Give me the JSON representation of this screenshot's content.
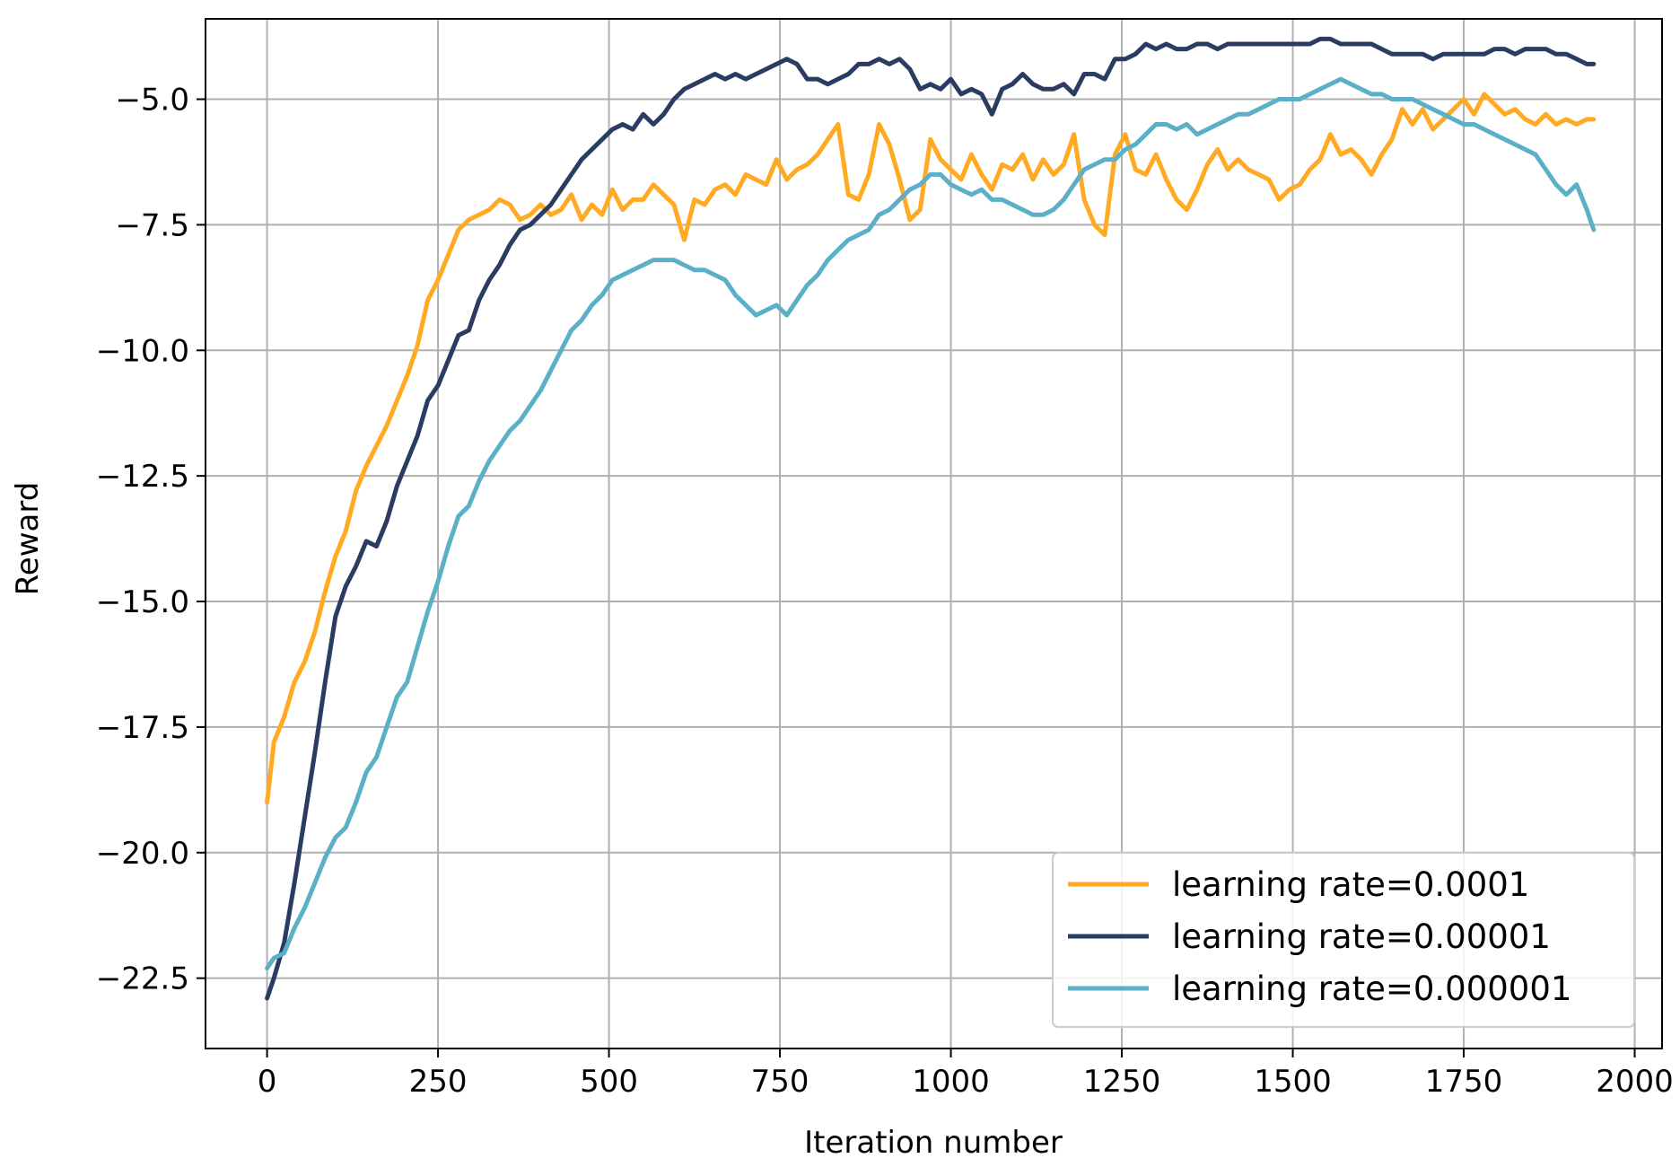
{
  "chart_data": {
    "type": "line",
    "xlabel": "Iteration number",
    "ylabel": "Reward",
    "xlim": [
      -90,
      2040
    ],
    "ylim": [
      -23.9,
      -3.4
    ],
    "xticks": [
      0,
      250,
      500,
      750,
      1000,
      1250,
      1500,
      1750,
      2000
    ],
    "yticks": [
      -22.5,
      -20.0,
      -17.5,
      -15.0,
      -12.5,
      -10.0,
      -7.5,
      -5.0
    ],
    "xtick_labels": [
      "0",
      "250",
      "500",
      "750",
      "1000",
      "1250",
      "1500",
      "1750",
      "2000"
    ],
    "ytick_labels": [
      "−22.5",
      "−20.0",
      "−17.5",
      "−15.0",
      "−12.5",
      "−10.0",
      "−7.5",
      "−5.0"
    ],
    "grid": true,
    "legend_position": "lower-right",
    "series": [
      {
        "name": "learning rate=0.0001",
        "color": "#FFAA22",
        "x": [
          0,
          10,
          25,
          40,
          55,
          70,
          85,
          100,
          115,
          130,
          145,
          160,
          175,
          190,
          205,
          220,
          235,
          250,
          265,
          280,
          295,
          310,
          325,
          340,
          355,
          370,
          385,
          400,
          415,
          430,
          445,
          460,
          475,
          490,
          505,
          520,
          535,
          550,
          565,
          580,
          595,
          610,
          625,
          640,
          655,
          670,
          685,
          700,
          715,
          730,
          745,
          760,
          775,
          790,
          805,
          820,
          835,
          850,
          865,
          880,
          895,
          910,
          925,
          940,
          955,
          970,
          985,
          1000,
          1015,
          1030,
          1045,
          1060,
          1075,
          1090,
          1105,
          1120,
          1135,
          1150,
          1165,
          1180,
          1195,
          1210,
          1225,
          1240,
          1255,
          1270,
          1285,
          1300,
          1315,
          1330,
          1345,
          1360,
          1375,
          1390,
          1405,
          1420,
          1435,
          1450,
          1465,
          1480,
          1495,
          1510,
          1525,
          1540,
          1555,
          1570,
          1585,
          1600,
          1615,
          1630,
          1645,
          1660,
          1675,
          1690,
          1705,
          1720,
          1735,
          1750,
          1765,
          1780,
          1795,
          1810,
          1825,
          1840,
          1855,
          1870,
          1885,
          1900,
          1915,
          1930,
          1940
        ],
        "y": [
          -19.0,
          -17.8,
          -17.3,
          -16.6,
          -16.2,
          -15.6,
          -14.8,
          -14.1,
          -13.6,
          -12.8,
          -12.3,
          -11.9,
          -11.5,
          -11.0,
          -10.5,
          -9.9,
          -9.0,
          -8.6,
          -8.1,
          -7.6,
          -7.4,
          -7.3,
          -7.2,
          -7.0,
          -7.1,
          -7.4,
          -7.3,
          -7.1,
          -7.3,
          -7.2,
          -6.9,
          -7.4,
          -7.1,
          -7.3,
          -6.8,
          -7.2,
          -7.0,
          -7.0,
          -6.7,
          -6.9,
          -7.1,
          -7.8,
          -7.0,
          -7.1,
          -6.8,
          -6.7,
          -6.9,
          -6.5,
          -6.6,
          -6.7,
          -6.2,
          -6.6,
          -6.4,
          -6.3,
          -6.1,
          -5.8,
          -5.5,
          -6.9,
          -7.0,
          -6.5,
          -5.5,
          -5.9,
          -6.6,
          -7.4,
          -7.2,
          -5.8,
          -6.2,
          -6.4,
          -6.6,
          -6.1,
          -6.5,
          -6.8,
          -6.3,
          -6.4,
          -6.1,
          -6.6,
          -6.2,
          -6.5,
          -6.3,
          -5.7,
          -7.0,
          -7.5,
          -7.7,
          -6.1,
          -5.7,
          -6.4,
          -6.5,
          -6.1,
          -6.6,
          -7.0,
          -7.2,
          -6.8,
          -6.3,
          -6.0,
          -6.4,
          -6.2,
          -6.4,
          -6.5,
          -6.6,
          -7.0,
          -6.8,
          -6.7,
          -6.4,
          -6.2,
          -5.7,
          -6.1,
          -6.0,
          -6.2,
          -6.5,
          -6.1,
          -5.8,
          -5.2,
          -5.5,
          -5.2,
          -5.6,
          -5.4,
          -5.2,
          -5.0,
          -5.3,
          -4.9,
          -5.1,
          -5.3,
          -5.2,
          -5.4,
          -5.5,
          -5.3,
          -5.5,
          -5.4,
          -5.5,
          -5.4,
          -5.4
        ]
      },
      {
        "name": "learning rate=0.00001",
        "color": "#2B3C63",
        "x": [
          0,
          10,
          25,
          40,
          55,
          70,
          85,
          100,
          115,
          130,
          145,
          160,
          175,
          190,
          205,
          220,
          235,
          250,
          265,
          280,
          295,
          310,
          325,
          340,
          355,
          370,
          385,
          400,
          415,
          430,
          445,
          460,
          475,
          490,
          505,
          520,
          535,
          550,
          565,
          580,
          595,
          610,
          625,
          640,
          655,
          670,
          685,
          700,
          715,
          730,
          745,
          760,
          775,
          790,
          805,
          820,
          835,
          850,
          865,
          880,
          895,
          910,
          925,
          940,
          955,
          970,
          985,
          1000,
          1015,
          1030,
          1045,
          1060,
          1075,
          1090,
          1105,
          1120,
          1135,
          1150,
          1165,
          1180,
          1195,
          1210,
          1225,
          1240,
          1255,
          1270,
          1285,
          1300,
          1315,
          1330,
          1345,
          1360,
          1375,
          1390,
          1405,
          1420,
          1435,
          1450,
          1465,
          1480,
          1495,
          1510,
          1525,
          1540,
          1555,
          1570,
          1585,
          1600,
          1615,
          1630,
          1645,
          1660,
          1675,
          1690,
          1705,
          1720,
          1735,
          1750,
          1765,
          1780,
          1795,
          1810,
          1825,
          1840,
          1855,
          1870,
          1885,
          1900,
          1915,
          1930,
          1940
        ],
        "y": [
          -22.9,
          -22.5,
          -21.8,
          -20.6,
          -19.3,
          -18.0,
          -16.6,
          -15.3,
          -14.7,
          -14.3,
          -13.8,
          -13.9,
          -13.4,
          -12.7,
          -12.2,
          -11.7,
          -11.0,
          -10.7,
          -10.2,
          -9.7,
          -9.6,
          -9.0,
          -8.6,
          -8.3,
          -7.9,
          -7.6,
          -7.5,
          -7.3,
          -7.1,
          -6.8,
          -6.5,
          -6.2,
          -6.0,
          -5.8,
          -5.6,
          -5.5,
          -5.6,
          -5.3,
          -5.5,
          -5.3,
          -5.0,
          -4.8,
          -4.7,
          -4.6,
          -4.5,
          -4.6,
          -4.5,
          -4.6,
          -4.5,
          -4.4,
          -4.3,
          -4.2,
          -4.3,
          -4.6,
          -4.6,
          -4.7,
          -4.6,
          -4.5,
          -4.3,
          -4.3,
          -4.2,
          -4.3,
          -4.2,
          -4.4,
          -4.8,
          -4.7,
          -4.8,
          -4.6,
          -4.9,
          -4.8,
          -4.9,
          -5.3,
          -4.8,
          -4.7,
          -4.5,
          -4.7,
          -4.8,
          -4.8,
          -4.7,
          -4.9,
          -4.5,
          -4.5,
          -4.6,
          -4.2,
          -4.2,
          -4.1,
          -3.9,
          -4.0,
          -3.9,
          -4.0,
          -4.0,
          -3.9,
          -3.9,
          -4.0,
          -3.9,
          -3.9,
          -3.9,
          -3.9,
          -3.9,
          -3.9,
          -3.9,
          -3.9,
          -3.9,
          -3.8,
          -3.8,
          -3.9,
          -3.9,
          -3.9,
          -3.9,
          -4.0,
          -4.1,
          -4.1,
          -4.1,
          -4.1,
          -4.2,
          -4.1,
          -4.1,
          -4.1,
          -4.1,
          -4.1,
          -4.0,
          -4.0,
          -4.1,
          -4.0,
          -4.0,
          -4.0,
          -4.1,
          -4.1,
          -4.2,
          -4.3,
          -4.3
        ]
      },
      {
        "name": "learning rate=0.000001",
        "color": "#5BB0C8",
        "x": [
          0,
          10,
          25,
          40,
          55,
          70,
          85,
          100,
          115,
          130,
          145,
          160,
          175,
          190,
          205,
          220,
          235,
          250,
          265,
          280,
          295,
          310,
          325,
          340,
          355,
          370,
          385,
          400,
          415,
          430,
          445,
          460,
          475,
          490,
          505,
          520,
          535,
          550,
          565,
          580,
          595,
          610,
          625,
          640,
          655,
          670,
          685,
          700,
          715,
          730,
          745,
          760,
          775,
          790,
          805,
          820,
          835,
          850,
          865,
          880,
          895,
          910,
          925,
          940,
          955,
          970,
          985,
          1000,
          1015,
          1030,
          1045,
          1060,
          1075,
          1090,
          1105,
          1120,
          1135,
          1150,
          1165,
          1180,
          1195,
          1210,
          1225,
          1240,
          1255,
          1270,
          1285,
          1300,
          1315,
          1330,
          1345,
          1360,
          1375,
          1390,
          1405,
          1420,
          1435,
          1450,
          1465,
          1480,
          1495,
          1510,
          1525,
          1540,
          1555,
          1570,
          1585,
          1600,
          1615,
          1630,
          1645,
          1660,
          1675,
          1690,
          1705,
          1720,
          1735,
          1750,
          1765,
          1780,
          1795,
          1810,
          1825,
          1840,
          1855,
          1870,
          1885,
          1900,
          1915,
          1930,
          1940
        ],
        "y": [
          -22.3,
          -22.1,
          -22.0,
          -21.5,
          -21.1,
          -20.6,
          -20.1,
          -19.7,
          -19.5,
          -19.0,
          -18.4,
          -18.1,
          -17.5,
          -16.9,
          -16.6,
          -15.9,
          -15.2,
          -14.6,
          -13.9,
          -13.3,
          -13.1,
          -12.6,
          -12.2,
          -11.9,
          -11.6,
          -11.4,
          -11.1,
          -10.8,
          -10.4,
          -10.0,
          -9.6,
          -9.4,
          -9.1,
          -8.9,
          -8.6,
          -8.5,
          -8.4,
          -8.3,
          -8.2,
          -8.2,
          -8.2,
          -8.3,
          -8.4,
          -8.4,
          -8.5,
          -8.6,
          -8.9,
          -9.1,
          -9.3,
          -9.2,
          -9.1,
          -9.3,
          -9.0,
          -8.7,
          -8.5,
          -8.2,
          -8.0,
          -7.8,
          -7.7,
          -7.6,
          -7.3,
          -7.2,
          -7.0,
          -6.8,
          -6.7,
          -6.5,
          -6.5,
          -6.7,
          -6.8,
          -6.9,
          -6.8,
          -7.0,
          -7.0,
          -7.1,
          -7.2,
          -7.3,
          -7.3,
          -7.2,
          -7.0,
          -6.7,
          -6.4,
          -6.3,
          -6.2,
          -6.2,
          -6.0,
          -5.9,
          -5.7,
          -5.5,
          -5.5,
          -5.6,
          -5.5,
          -5.7,
          -5.6,
          -5.5,
          -5.4,
          -5.3,
          -5.3,
          -5.2,
          -5.1,
          -5.0,
          -5.0,
          -5.0,
          -4.9,
          -4.8,
          -4.7,
          -4.6,
          -4.7,
          -4.8,
          -4.9,
          -4.9,
          -5.0,
          -5.0,
          -5.0,
          -5.1,
          -5.2,
          -5.3,
          -5.4,
          -5.5,
          -5.5,
          -5.6,
          -5.7,
          -5.8,
          -5.9,
          -6.0,
          -6.1,
          -6.4,
          -6.7,
          -6.9,
          -6.7,
          -7.2,
          -7.6
        ]
      }
    ]
  }
}
